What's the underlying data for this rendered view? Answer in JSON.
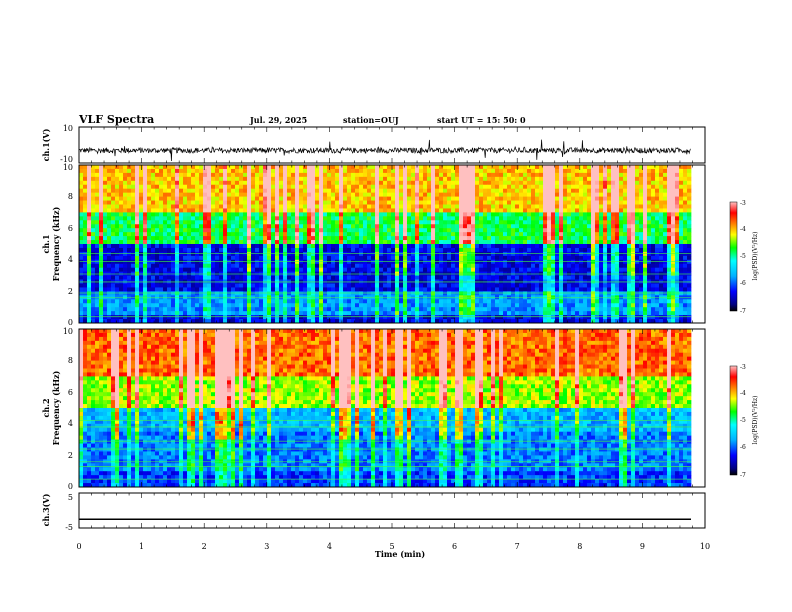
{
  "header": {
    "title": "VLF Spectra",
    "date": "Jul. 29, 2025",
    "station": "station=OUJ",
    "start": "start UT =  15: 50: 0"
  },
  "chart_data": [
    {
      "type": "line",
      "panel": "ch1-waveform",
      "ylabel": "ch.1(V)",
      "ylim": [
        -10,
        10
      ],
      "yticks": [
        "10",
        "-10"
      ],
      "xlim": [
        0,
        10
      ],
      "description_values": {
        "baseline": -3,
        "typical_amplitude": 1.5,
        "spike_amplitude": 6
      }
    },
    {
      "type": "heatmap",
      "panel": "ch1-spectrogram",
      "ylabel": "ch.1",
      "ylabel2": "Frequency (kHz)",
      "ylim": [
        0,
        10
      ],
      "yticks": [
        "0",
        "2",
        "4",
        "6",
        "8",
        "10"
      ],
      "xlim": [
        0,
        10
      ],
      "color_range": [
        -7,
        -3
      ],
      "colorbar_ticks": [
        "-3",
        "-4",
        "-5",
        "-6",
        "-7"
      ],
      "colorbar_label": "log(PSD)(V²/Hz)"
    },
    {
      "type": "heatmap",
      "panel": "ch2-spectrogram",
      "ylabel": "ch.2",
      "ylabel2": "Frequency (kHz)",
      "ylim": [
        0,
        10
      ],
      "yticks": [
        "0",
        "2",
        "4",
        "6",
        "8",
        "10"
      ],
      "xlim": [
        0,
        10
      ],
      "color_range": [
        -7,
        -3
      ],
      "colorbar_ticks": [
        "-3",
        "-4",
        "-5",
        "-6",
        "-7"
      ],
      "colorbar_label": "log(PSD)(V²/Hz)"
    },
    {
      "type": "line",
      "panel": "ch3-waveform",
      "ylabel": "ch.3(V)",
      "ylim": [
        -5,
        5
      ],
      "yticks": [
        "5",
        "-5"
      ],
      "xlim": [
        0,
        10
      ],
      "values": {
        "constant": -2.5
      }
    }
  ],
  "x_axis": {
    "label": "Time (min)",
    "ticks": [
      "0",
      "1",
      "2",
      "3",
      "4",
      "5",
      "6",
      "7",
      "8",
      "9",
      "10"
    ]
  },
  "colors": {
    "low": "#000080",
    "mid": "#00ff00",
    "high": "#ff0000"
  }
}
